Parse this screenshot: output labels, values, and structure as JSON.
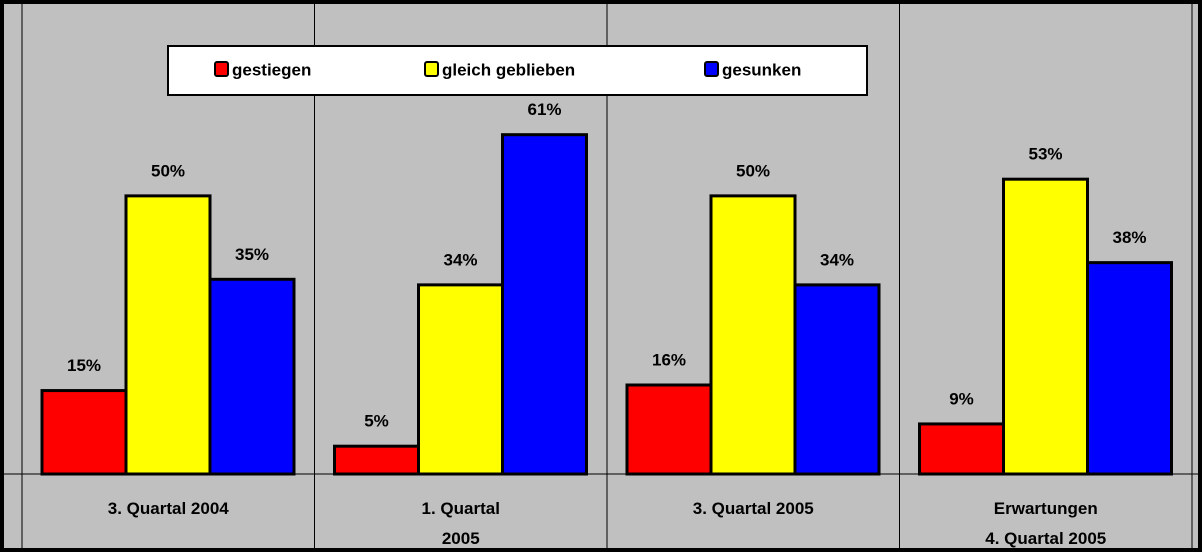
{
  "chart_data": {
    "type": "bar",
    "categories": [
      "3. Quartal 2004",
      "1. Quartal\n2005",
      "3. Quartal 2005",
      "Erwartungen\n4. Quartal 2005"
    ],
    "series": [
      {
        "name": "gestiegen",
        "color": "#ff0000",
        "values": [
          15,
          5,
          16,
          9
        ],
        "value_labels": [
          "15%",
          "5%",
          "16%",
          "9%"
        ]
      },
      {
        "name": "gleich geblieben",
        "color": "#ffff00",
        "values": [
          50,
          34,
          50,
          53
        ],
        "value_labels": [
          "50%",
          "34%",
          "50%",
          "53%"
        ]
      },
      {
        "name": "gesunken",
        "color": "#0000ff",
        "values": [
          35,
          61,
          34,
          38
        ],
        "value_labels": [
          "35%",
          "61%",
          "34%",
          "38%"
        ]
      }
    ],
    "ylim": [
      0,
      80
    ]
  }
}
